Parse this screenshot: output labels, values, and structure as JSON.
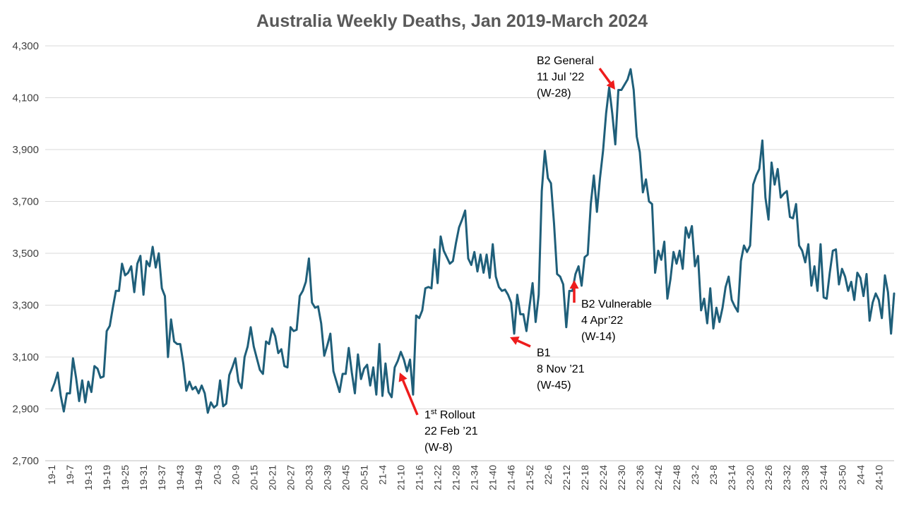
{
  "chart_data": {
    "type": "line",
    "title": "Australia Weekly Deaths, Jan 2019-March 2024",
    "xlabel": "",
    "ylabel": "",
    "ylim": [
      2700,
      4300
    ],
    "yticks": [
      2700,
      2900,
      3100,
      3300,
      3500,
      3700,
      3900,
      4100,
      4300
    ],
    "ytick_labels": [
      "2,700",
      "2,900",
      "3,100",
      "3,300",
      "3,500",
      "3,700",
      "3,900",
      "4,100",
      "4,300"
    ],
    "grid": true,
    "legend": "none",
    "line_color": "#1f5f7a",
    "x_tick_labels": [
      "19-1",
      "19-7",
      "19-13",
      "19-19",
      "19-25",
      "19-31",
      "19-37",
      "19-43",
      "19-49",
      "20-3",
      "20-9",
      "20-15",
      "20-21",
      "20-27",
      "20-33",
      "20-39",
      "20-45",
      "20-51",
      "21-4",
      "21-10",
      "21-16",
      "21-22",
      "21-28",
      "21-34",
      "21-40",
      "21-46",
      "21-52",
      "22-6",
      "22-12",
      "22-18",
      "22-24",
      "22-30",
      "22-36",
      "22-42",
      "22-48",
      "23-2",
      "23-8",
      "23-14",
      "23-20",
      "23-26",
      "23-32",
      "23-38",
      "23-44",
      "23-50",
      "24-4",
      "24-10"
    ],
    "series": [
      {
        "values": [
          2970,
          3000,
          3040,
          2950,
          2890,
          2960,
          2960,
          3095,
          3020,
          2930,
          3010,
          2925,
          3005,
          2965,
          3065,
          3055,
          3020,
          3025,
          3200,
          3220,
          3290,
          3355,
          3355,
          3460,
          3415,
          3425,
          3450,
          3350,
          3460,
          3490,
          3340,
          3470,
          3450,
          3525,
          3445,
          3500,
          3365,
          3335,
          3100,
          3245,
          3160,
          3150,
          3150,
          3075,
          2970,
          3005,
          2975,
          2985,
          2960,
          2990,
          2960,
          2885,
          2925,
          2905,
          2915,
          3010,
          2910,
          2920,
          3030,
          3060,
          3095,
          3005,
          2980,
          3100,
          3140,
          3215,
          3140,
          3095,
          3050,
          3035,
          3160,
          3150,
          3210,
          3180,
          3115,
          3130,
          3065,
          3060,
          3215,
          3200,
          3205,
          3335,
          3355,
          3390,
          3480,
          3310,
          3290,
          3295,
          3230,
          3105,
          3145,
          3190,
          3045,
          3005,
          2965,
          3035,
          3035,
          3135,
          3040,
          2960,
          3110,
          3015,
          3055,
          3070,
          2990,
          3060,
          2955,
          3150,
          2950,
          3075,
          2965,
          2945,
          3060,
          3085,
          3120,
          3090,
          3045,
          3090,
          2955,
          3260,
          3250,
          3280,
          3365,
          3370,
          3365,
          3515,
          3385,
          3565,
          3510,
          3485,
          3460,
          3470,
          3540,
          3600,
          3630,
          3665,
          3480,
          3455,
          3505,
          3430,
          3495,
          3425,
          3495,
          3405,
          3535,
          3410,
          3370,
          3355,
          3360,
          3340,
          3310,
          3190,
          3340,
          3265,
          3265,
          3200,
          3295,
          3385,
          3235,
          3340,
          3740,
          3895,
          3790,
          3770,
          3615,
          3420,
          3410,
          3380,
          3215,
          3355,
          3355,
          3420,
          3450,
          3375,
          3485,
          3495,
          3690,
          3800,
          3660,
          3790,
          3895,
          4040,
          4140,
          4040,
          3920,
          4130,
          4130,
          4150,
          4170,
          4210,
          4130,
          3950,
          3890,
          3735,
          3785,
          3700,
          3690,
          3425,
          3510,
          3475,
          3545,
          3325,
          3400,
          3505,
          3460,
          3510,
          3440,
          3600,
          3560,
          3605,
          3450,
          3490,
          3280,
          3325,
          3230,
          3365,
          3210,
          3290,
          3235,
          3290,
          3370,
          3410,
          3320,
          3295,
          3275,
          3470,
          3530,
          3505,
          3530,
          3765,
          3800,
          3825,
          3935,
          3715,
          3630,
          3850,
          3765,
          3825,
          3715,
          3730,
          3740,
          3640,
          3635,
          3690,
          3530,
          3510,
          3465,
          3535,
          3375,
          3450,
          3355,
          3535,
          3330,
          3325,
          3425,
          3510,
          3515,
          3380,
          3440,
          3410,
          3355,
          3390,
          3320,
          3425,
          3405,
          3335,
          3420,
          3240,
          3310,
          3345,
          3320,
          3250,
          3415,
          3350,
          3190,
          3345
        ]
      }
    ],
    "annotations": [
      {
        "id": "rollout",
        "lines": [
          "Rollout",
          "22 Feb ’21",
          "(W-8)"
        ],
        "prefix": "1",
        "prefix_sup": "st"
      },
      {
        "id": "b1",
        "lines": [
          "B1",
          "8 Nov ’21",
          "(W-45)"
        ]
      },
      {
        "id": "b2-vulnerable",
        "lines": [
          "B2 Vulnerable",
          "4 Apr’22",
          "(W-14)"
        ]
      },
      {
        "id": "b2-general",
        "lines": [
          "B2 General",
          "11 Jul ’22",
          "(W-28)"
        ]
      }
    ],
    "arrow_color": "#ee1c1c"
  }
}
